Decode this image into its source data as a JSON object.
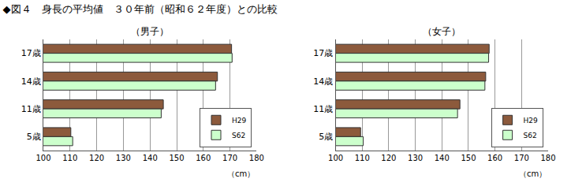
{
  "title": "◆図４　身長の平均値　３０年前（昭和６２年度）との比較",
  "chart_data": [
    {
      "type": "bar",
      "subtitle": "（男子）",
      "orientation": "horizontal",
      "categories": [
        "17歳",
        "14歳",
        "11歳",
        "5歳"
      ],
      "series": [
        {
          "name": "H29",
          "color": "#8c5a3c",
          "values": [
            170.6,
            165.3,
            145.0,
            110.3
          ]
        },
        {
          "name": "S62",
          "color": "#ccffcc",
          "values": [
            170.8,
            164.6,
            144.2,
            111.0
          ]
        }
      ],
      "xlim": [
        100,
        180
      ],
      "xticks": [
        100,
        110,
        120,
        130,
        140,
        150,
        160,
        170,
        180
      ],
      "xlabel": "（cm）",
      "grid": true,
      "legend": "lower right"
    },
    {
      "type": "bar",
      "subtitle": "（女子）",
      "orientation": "horizontal",
      "categories": [
        "17歳",
        "14歳",
        "11歳",
        "5歳"
      ],
      "series": [
        {
          "name": "H29",
          "color": "#8c5a3c",
          "values": [
            157.8,
            156.5,
            146.8,
            109.4
          ]
        },
        {
          "name": "S62",
          "color": "#ccffcc",
          "values": [
            157.6,
            156.2,
            145.9,
            110.4
          ]
        }
      ],
      "xlim": [
        100,
        180
      ],
      "xticks": [
        100,
        110,
        120,
        130,
        140,
        150,
        160,
        170,
        180
      ],
      "xlabel": "（cm）",
      "grid": true,
      "legend": "lower right"
    }
  ]
}
